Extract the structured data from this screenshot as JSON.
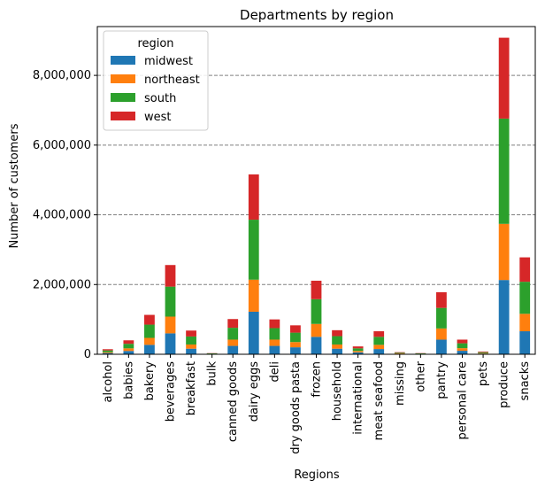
{
  "chart_data": {
    "type": "bar",
    "stacked": true,
    "title": "Departments by region",
    "xlabel": "Regions",
    "ylabel": "Number of customers",
    "ylim": [
      0,
      9400000
    ],
    "yticks": [
      0,
      2000000,
      4000000,
      6000000,
      8000000
    ],
    "ytick_labels": [
      "0",
      "2,000,000",
      "4,000,000",
      "6,000,000",
      "8,000,000"
    ],
    "grid": "horizontal dashed at ticks",
    "legend_title": "region",
    "legend_position": "top-left",
    "categories": [
      "alcohol",
      "babies",
      "bakery",
      "beverages",
      "breakfast",
      "bulk",
      "canned goods",
      "dairy eggs",
      "deli",
      "dry goods pasta",
      "frozen",
      "household",
      "international",
      "meat seafood",
      "missing",
      "other",
      "pantry",
      "personal care",
      "pets",
      "produce",
      "snacks"
    ],
    "series": [
      {
        "name": "midwest",
        "color": "#1f77b4",
        "values": [
          35000,
          95000,
          270000,
          600000,
          160000,
          8000,
          240000,
          1220000,
          240000,
          200000,
          500000,
          160000,
          55000,
          150000,
          15000,
          8000,
          420000,
          100000,
          18000,
          2130000,
          660000
        ]
      },
      {
        "name": "northeast",
        "color": "#ff7f0e",
        "values": [
          25000,
          75000,
          200000,
          480000,
          120000,
          6000,
          180000,
          920000,
          180000,
          150000,
          370000,
          120000,
          40000,
          120000,
          10000,
          6000,
          320000,
          75000,
          14000,
          1610000,
          500000
        ]
      },
      {
        "name": "south",
        "color": "#2ca02c",
        "values": [
          50000,
          130000,
          380000,
          860000,
          230000,
          11000,
          340000,
          1720000,
          330000,
          270000,
          710000,
          240000,
          75000,
          230000,
          20000,
          11000,
          590000,
          140000,
          27000,
          3020000,
          920000
        ]
      },
      {
        "name": "west",
        "color": "#d62728",
        "values": [
          35000,
          100000,
          280000,
          620000,
          170000,
          7000,
          250000,
          1300000,
          250000,
          210000,
          530000,
          170000,
          55000,
          160000,
          15000,
          8000,
          450000,
          105000,
          19000,
          2320000,
          700000
        ]
      }
    ]
  }
}
